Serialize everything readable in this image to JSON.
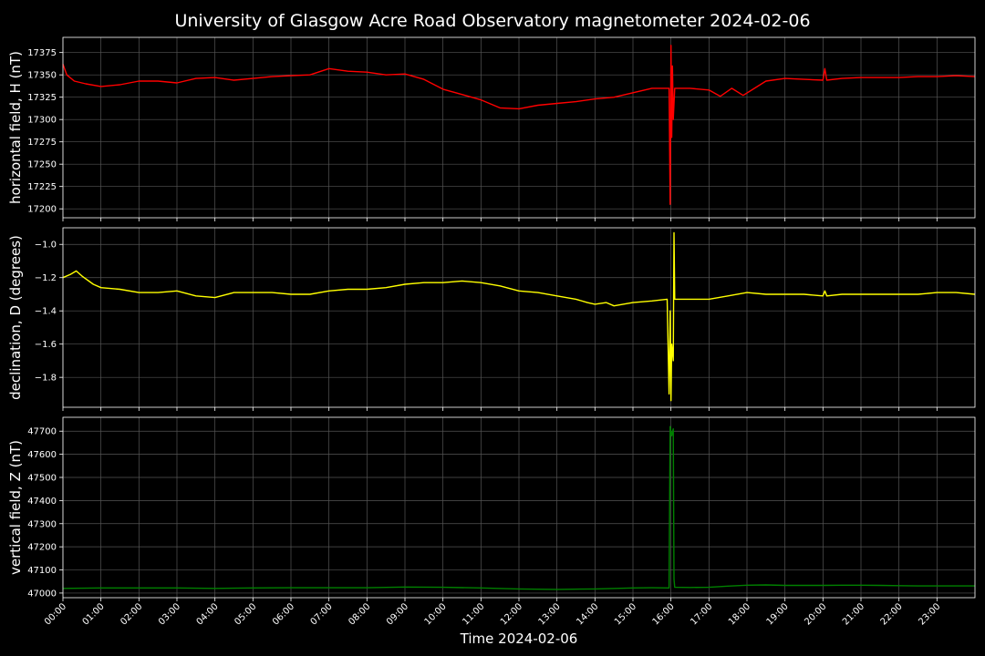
{
  "chart_data": {
    "title": "University of Glasgow Acre Road Observatory magnetometer 2024-02-06",
    "xlabel": "Time 2024-02-06",
    "type": "line",
    "x_unit": "hours",
    "xlim": [
      0,
      24
    ],
    "x_ticks": [
      {
        "value": 0,
        "label": "00:00"
      },
      {
        "value": 1,
        "label": "01:00"
      },
      {
        "value": 2,
        "label": "02:00"
      },
      {
        "value": 3,
        "label": "03:00"
      },
      {
        "value": 4,
        "label": "04:00"
      },
      {
        "value": 5,
        "label": "05:00"
      },
      {
        "value": 6,
        "label": "06:00"
      },
      {
        "value": 7,
        "label": "07:00"
      },
      {
        "value": 8,
        "label": "08:00"
      },
      {
        "value": 9,
        "label": "09:00"
      },
      {
        "value": 10,
        "label": "10:00"
      },
      {
        "value": 11,
        "label": "11:00"
      },
      {
        "value": 12,
        "label": "12:00"
      },
      {
        "value": 13,
        "label": "13:00"
      },
      {
        "value": 14,
        "label": "14:00"
      },
      {
        "value": 15,
        "label": "15:00"
      },
      {
        "value": 16,
        "label": "16:00"
      },
      {
        "value": 17,
        "label": "17:00"
      },
      {
        "value": 18,
        "label": "18:00"
      },
      {
        "value": 19,
        "label": "19:00"
      },
      {
        "value": 20,
        "label": "20:00"
      },
      {
        "value": 21,
        "label": "21:00"
      },
      {
        "value": 22,
        "label": "22:00"
      },
      {
        "value": 23,
        "label": "23:00"
      }
    ],
    "grid": true,
    "panels": [
      {
        "ylabel": "horizontal field, H (nT)",
        "color": "#ff0000",
        "ylim": [
          17190,
          17392
        ],
        "y_ticks": [
          "17200",
          "17225",
          "17250",
          "17275",
          "17300",
          "17325",
          "17350",
          "17375"
        ],
        "y_tick_values": [
          17200,
          17225,
          17250,
          17275,
          17300,
          17325,
          17350,
          17375
        ],
        "x": [
          0,
          0.1,
          0.3,
          0.6,
          1.0,
          1.5,
          2.0,
          2.5,
          3.0,
          3.5,
          4.0,
          4.5,
          5.0,
          5.5,
          6.0,
          6.5,
          7.0,
          7.5,
          8.0,
          8.5,
          9.0,
          9.5,
          10.0,
          10.5,
          11.0,
          11.5,
          12.0,
          12.5,
          13.0,
          13.5,
          14.0,
          14.5,
          15.0,
          15.5,
          15.95,
          15.98,
          16.0,
          16.02,
          16.04,
          16.06,
          16.1,
          16.5,
          17.0,
          17.3,
          17.6,
          17.9,
          18.2,
          18.5,
          19.0,
          19.5,
          20.0,
          20.05,
          20.1,
          20.5,
          21.0,
          21.5,
          22.0,
          22.5,
          23.0,
          23.5,
          24.0
        ],
        "y": [
          17362,
          17350,
          17343,
          17340,
          17337,
          17339,
          17343,
          17343,
          17341,
          17346,
          17347,
          17344,
          17346,
          17348,
          17349,
          17350,
          17357,
          17354,
          17353,
          17350,
          17351,
          17345,
          17334,
          17328,
          17322,
          17313,
          17312,
          17316,
          17318,
          17320,
          17323,
          17325,
          17330,
          17335,
          17335,
          17205,
          17383,
          17280,
          17360,
          17300,
          17335,
          17335,
          17333,
          17326,
          17335,
          17327,
          17335,
          17343,
          17346,
          17345,
          17344,
          17357,
          17344,
          17346,
          17347,
          17347,
          17347,
          17348,
          17348,
          17349,
          17348
        ]
      },
      {
        "ylabel": "declination, D (degrees)",
        "color": "#ffff00",
        "ylim": [
          -1.98,
          -0.9
        ],
        "y_ticks": [
          "−1.8",
          "−1.6",
          "−1.4",
          "−1.2",
          "−1.0"
        ],
        "y_tick_values": [
          -1.8,
          -1.6,
          -1.4,
          -1.2,
          -1.0
        ],
        "x": [
          0,
          0.2,
          0.35,
          0.5,
          0.8,
          1.0,
          1.5,
          2.0,
          2.5,
          3.0,
          3.5,
          4.0,
          4.5,
          5.0,
          5.5,
          6.0,
          6.5,
          7.0,
          7.5,
          8.0,
          8.5,
          9.0,
          9.5,
          10.0,
          10.5,
          11.0,
          11.5,
          12.0,
          12.5,
          13.0,
          13.5,
          13.8,
          14.0,
          14.3,
          14.5,
          15.0,
          15.5,
          15.9,
          15.95,
          15.98,
          16.0,
          16.02,
          16.06,
          16.08,
          16.1,
          16.5,
          17.0,
          17.5,
          18.0,
          18.5,
          19.0,
          19.5,
          20.0,
          20.05,
          20.1,
          20.5,
          21.0,
          21.5,
          22.0,
          22.5,
          23.0,
          23.5,
          24.0
        ],
        "y": [
          -1.2,
          -1.18,
          -1.16,
          -1.19,
          -1.24,
          -1.26,
          -1.27,
          -1.29,
          -1.29,
          -1.28,
          -1.31,
          -1.32,
          -1.29,
          -1.29,
          -1.29,
          -1.3,
          -1.3,
          -1.28,
          -1.27,
          -1.27,
          -1.26,
          -1.24,
          -1.23,
          -1.23,
          -1.22,
          -1.23,
          -1.25,
          -1.28,
          -1.29,
          -1.31,
          -1.33,
          -1.35,
          -1.36,
          -1.35,
          -1.37,
          -1.35,
          -1.34,
          -1.33,
          -1.9,
          -1.4,
          -1.94,
          -1.6,
          -1.7,
          -0.93,
          -1.33,
          -1.33,
          -1.33,
          -1.31,
          -1.29,
          -1.3,
          -1.3,
          -1.3,
          -1.31,
          -1.28,
          -1.31,
          -1.3,
          -1.3,
          -1.3,
          -1.3,
          -1.3,
          -1.29,
          -1.29,
          -1.3
        ]
      },
      {
        "ylabel": "vertical field, Z (nT)",
        "color": "#008000",
        "ylim": [
          46980,
          47760
        ],
        "y_ticks": [
          "47000",
          "47100",
          "47200",
          "47300",
          "47400",
          "47500",
          "47600",
          "47700"
        ],
        "y_tick_values": [
          47000,
          47100,
          47200,
          47300,
          47400,
          47500,
          47600,
          47700
        ],
        "x": [
          0,
          1.0,
          2.0,
          3.0,
          4.0,
          5.0,
          6.0,
          7.0,
          8.0,
          9.0,
          10.0,
          11.0,
          12.0,
          13.0,
          14.0,
          15.0,
          15.5,
          15.95,
          15.98,
          16.02,
          16.06,
          16.08,
          16.1,
          16.5,
          17.0,
          17.5,
          18.0,
          18.5,
          19.0,
          19.5,
          20.0,
          20.5,
          21.0,
          21.5,
          22.0,
          22.5,
          23.0,
          23.5,
          24.0
        ],
        "y": [
          47020,
          47022,
          47022,
          47022,
          47020,
          47022,
          47023,
          47023,
          47023,
          47026,
          47025,
          47022,
          47018,
          47016,
          47018,
          47022,
          47023,
          47022,
          47720,
          47680,
          47710,
          47060,
          47025,
          47024,
          47025,
          47030,
          47034,
          47035,
          47033,
          47033,
          47033,
          47034,
          47034,
          47033,
          47032,
          47031,
          47031,
          47031,
          47031
        ]
      }
    ]
  }
}
